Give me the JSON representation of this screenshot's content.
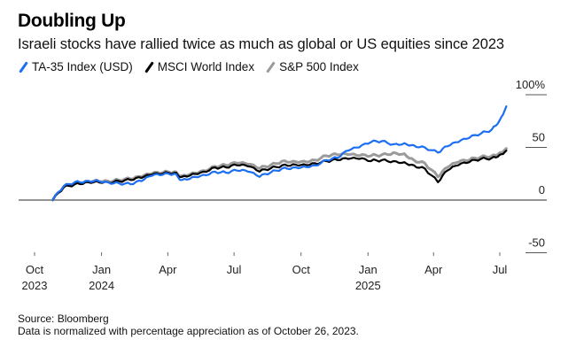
{
  "chart_data": {
    "type": "line",
    "title": "Doubling Up",
    "subtitle": "Israeli stocks have rallied twice as much as global or US equities since 2023",
    "xlabel": "",
    "ylabel": "",
    "ylim": [
      -50,
      100
    ],
    "yticks": [
      {
        "value": 100,
        "label": "100%"
      },
      {
        "value": 50,
        "label": "50"
      },
      {
        "value": 0,
        "label": "0"
      },
      {
        "value": -50,
        "label": "-50"
      }
    ],
    "xticks": [
      {
        "date": "2023-10-01",
        "label": "Oct",
        "year": "2023"
      },
      {
        "date": "2024-01-01",
        "label": "Jan",
        "year": "2024"
      },
      {
        "date": "2024-04-01",
        "label": "Apr",
        "year": ""
      },
      {
        "date": "2024-07-01",
        "label": "Jul",
        "year": ""
      },
      {
        "date": "2024-10-01",
        "label": "Oct",
        "year": ""
      },
      {
        "date": "2025-01-01",
        "label": "Jan",
        "year": "2025"
      },
      {
        "date": "2025-04-01",
        "label": "Apr",
        "year": ""
      },
      {
        "date": "2025-07-01",
        "label": "Jul",
        "year": ""
      }
    ],
    "legend_position": "top-left",
    "grid": false,
    "x": [
      "2023-10-26",
      "2023-11-10",
      "2023-11-25",
      "2023-12-10",
      "2023-12-25",
      "2024-01-10",
      "2024-01-25",
      "2024-02-10",
      "2024-02-25",
      "2024-03-10",
      "2024-03-25",
      "2024-04-10",
      "2024-04-20",
      "2024-05-05",
      "2024-05-20",
      "2024-06-05",
      "2024-06-20",
      "2024-07-05",
      "2024-07-20",
      "2024-08-05",
      "2024-08-20",
      "2024-09-05",
      "2024-09-20",
      "2024-10-05",
      "2024-10-20",
      "2024-11-05",
      "2024-11-20",
      "2024-12-05",
      "2024-12-20",
      "2025-01-05",
      "2025-01-20",
      "2025-02-05",
      "2025-02-20",
      "2025-03-05",
      "2025-03-20",
      "2025-04-07",
      "2025-04-20",
      "2025-05-05",
      "2025-05-20",
      "2025-06-05",
      "2025-06-20",
      "2025-07-01",
      "2025-07-10"
    ],
    "series": [
      {
        "name": "TA-35 Index (USD)",
        "color": "#1c6ef2",
        "values": [
          0,
          13,
          17,
          18,
          19,
          17,
          16,
          15,
          18,
          23,
          24,
          25,
          19,
          22,
          24,
          27,
          26,
          28,
          27,
          22,
          26,
          30,
          31,
          32,
          33,
          38,
          40,
          47,
          50,
          55,
          56,
          53,
          54,
          52,
          50,
          45,
          51,
          55,
          59,
          63,
          67,
          76,
          89
        ]
      },
      {
        "name": "MSCI World Index",
        "color": "#000000",
        "values": [
          0,
          12,
          15,
          17,
          18,
          17,
          18,
          19,
          21,
          24,
          25,
          26,
          22,
          25,
          27,
          31,
          31,
          33,
          32,
          27,
          30,
          33,
          34,
          34,
          35,
          37,
          38,
          39,
          39,
          37,
          38,
          37,
          36,
          33,
          30,
          17,
          28,
          33,
          36,
          39,
          40,
          43,
          47
        ]
      },
      {
        "name": "S&P 500 Index",
        "color": "#9b9b9b",
        "values": [
          0,
          13,
          16,
          18,
          19,
          18,
          19,
          20,
          22,
          25,
          26,
          27,
          23,
          26,
          28,
          32,
          33,
          35,
          34,
          30,
          33,
          37,
          37,
          37,
          38,
          42,
          43,
          43,
          42,
          42,
          43,
          45,
          44,
          38,
          35,
          22,
          31,
          36,
          38,
          41,
          42,
          45,
          49
        ]
      }
    ]
  },
  "footer": {
    "source": "Source: Bloomberg",
    "note": "Data is normalized with percentage appreciation as of October 26, 2023."
  }
}
